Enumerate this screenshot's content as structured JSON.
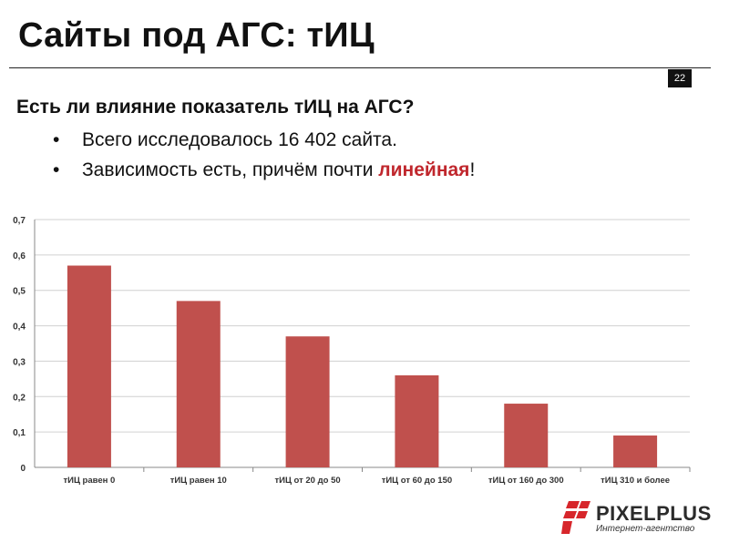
{
  "slide": {
    "title": "Сайты под АГС: тИЦ",
    "page_number": "22",
    "question": "Есть ли влияние показатель тИЦ на АГС?",
    "bullets": [
      {
        "bullet": "•",
        "text": "Всего исследовалось 16 402 сайта."
      },
      {
        "bullet": "•",
        "text_before": "Зависимость есть, причём почти ",
        "highlight": "линейная",
        "text_after": "!"
      }
    ],
    "highlight_color": "#c0272d"
  },
  "chart_data": {
    "type": "bar",
    "categories": [
      "тИЦ равен 0",
      "тИЦ равен  10",
      "тИЦ от 20 до 50",
      "тИЦ от 60 до 150",
      "тИЦ от 160 до 300",
      "тИЦ 310 и более"
    ],
    "values": [
      0.57,
      0.47,
      0.37,
      0.26,
      0.18,
      0.09
    ],
    "yticks": [
      "0",
      "0,1",
      "0,2",
      "0,3",
      "0,4",
      "0,5",
      "0,6",
      "0,7"
    ],
    "ylim": [
      0,
      0.7
    ],
    "grid": true,
    "bar_color": "#c0504d",
    "title": "",
    "xlabel": "",
    "ylabel": ""
  },
  "logo": {
    "name": "PIXELPLUS",
    "tagline": "Интернет-агентство",
    "mark_color": "#d7262b",
    "text_color": "#2b2b2b"
  }
}
